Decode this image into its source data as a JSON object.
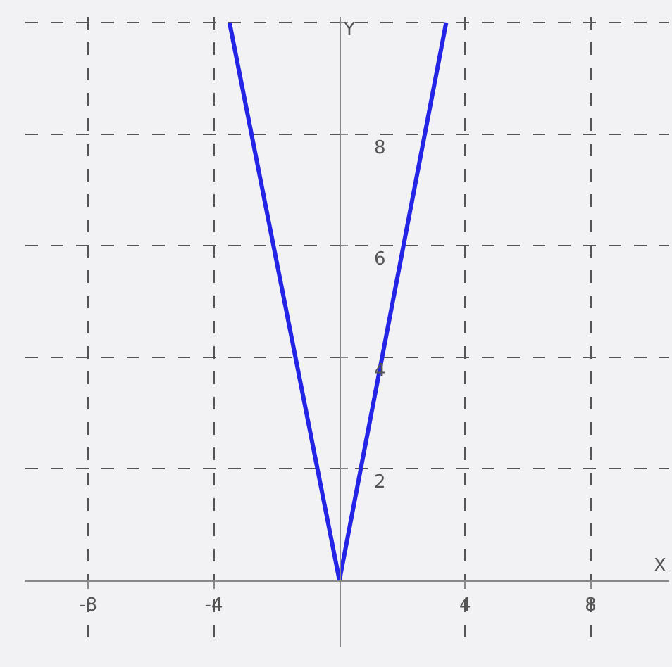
{
  "chart_data": {
    "type": "line",
    "xlabel": "X",
    "ylabel": "Y",
    "x": [
      -3.5,
      0,
      3.4
    ],
    "series": [
      {
        "color": "#2424e6",
        "values": [
          10,
          0,
          10
        ]
      }
    ],
    "xlim": [
      -10,
      10.5
    ],
    "ylim": [
      -1.2,
      10.1
    ],
    "xticks": [
      -8,
      -4,
      4,
      8
    ],
    "yticks": [
      2,
      4,
      6,
      8,
      {
        "value": 10,
        "label": null
      }
    ],
    "grid": true,
    "marker": "none",
    "line_style": "solid"
  }
}
